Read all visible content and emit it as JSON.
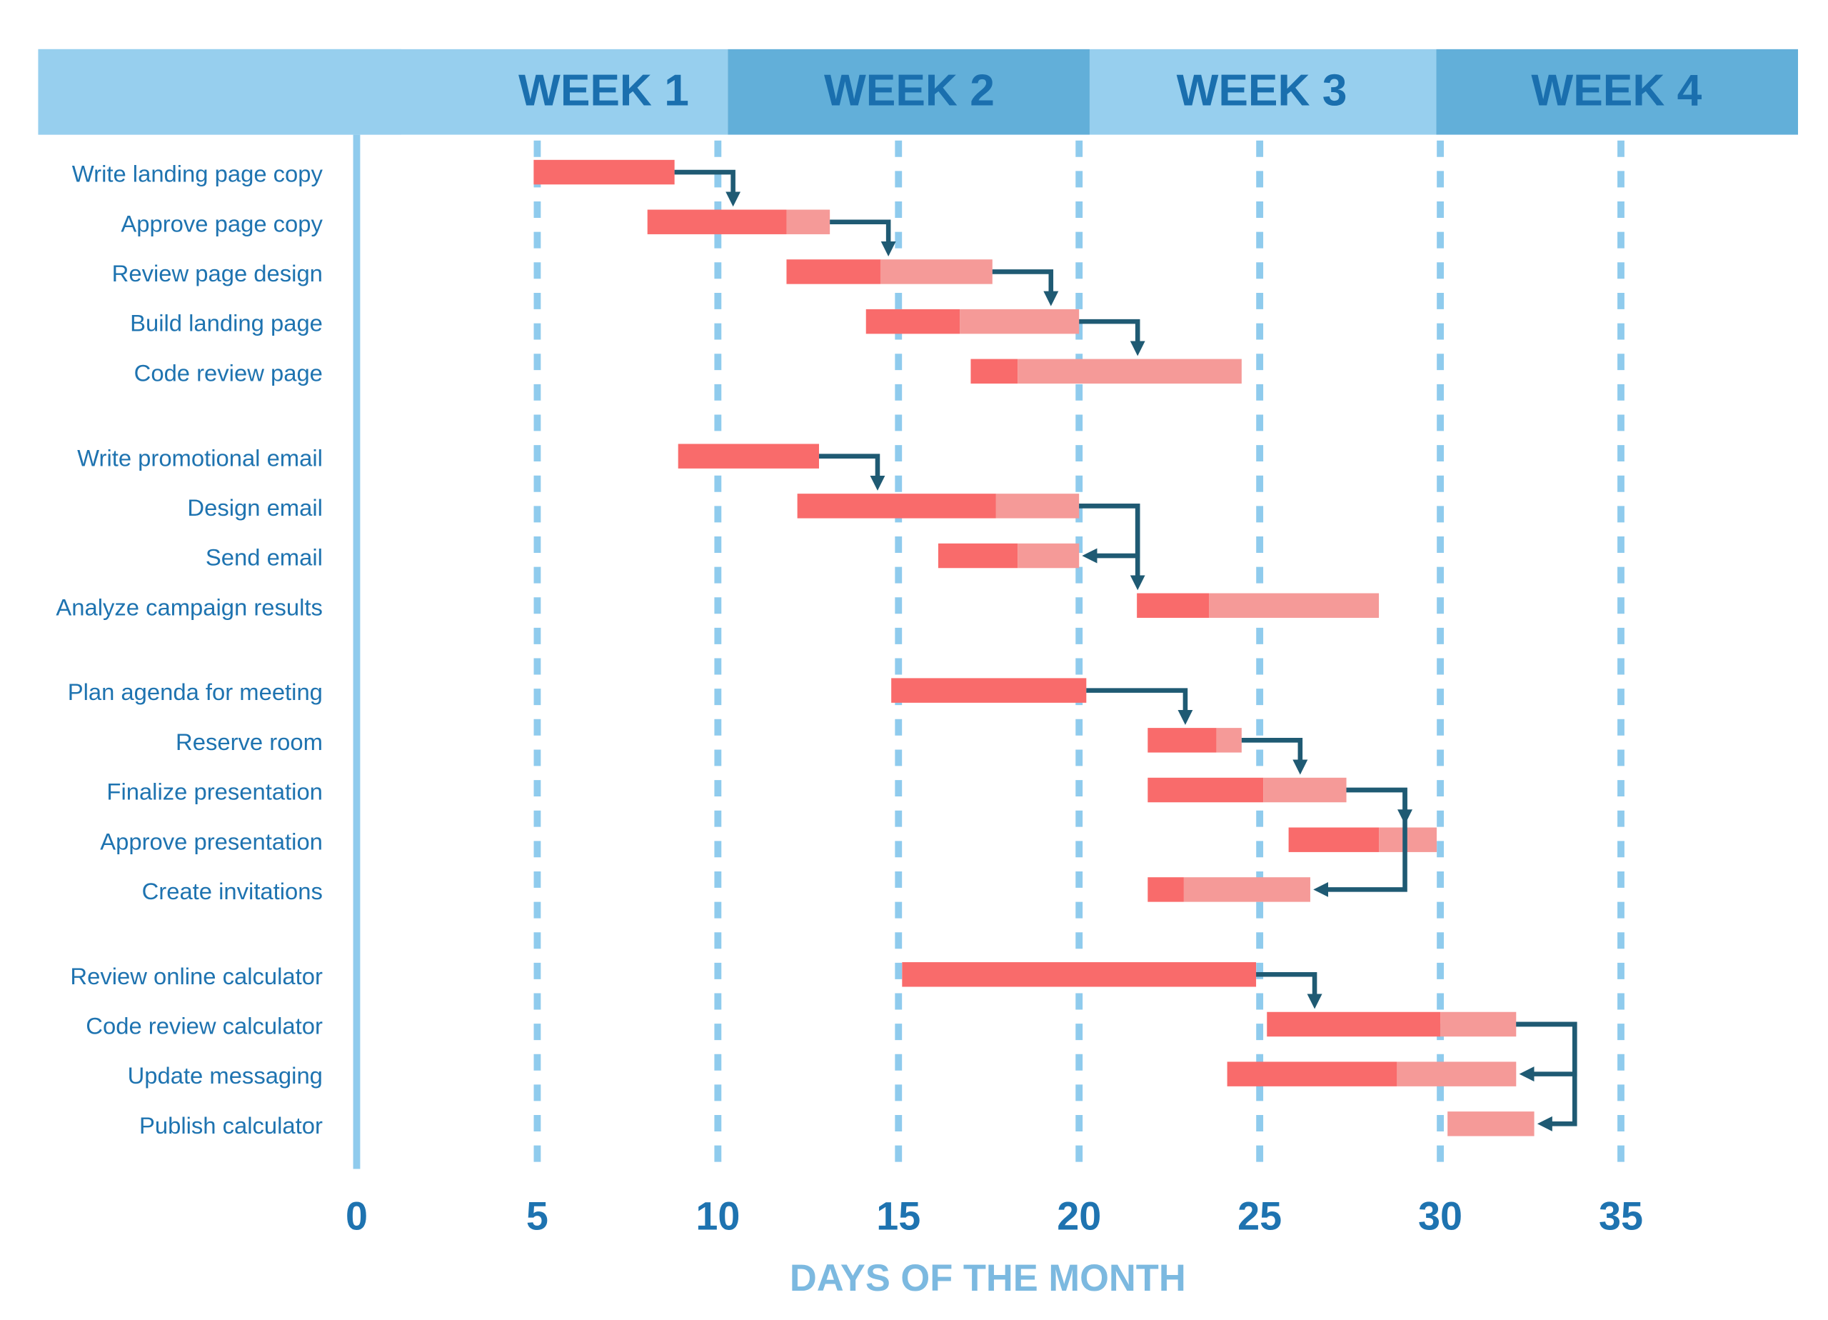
{
  "chart_data": {
    "type": "gantt",
    "weeks": [
      "WEEK 1",
      "WEEK 2",
      "WEEK 3",
      "WEEK 4"
    ],
    "xlabel": "DAYS OF THE MONTH",
    "xlim": [
      0,
      40
    ],
    "xticks": [
      0,
      5,
      10,
      15,
      20,
      25,
      30,
      35
    ],
    "grid": true,
    "colors": {
      "done": "#f96b6b",
      "remaining": "#f59a98"
    },
    "groups": [
      {
        "tasks": [
          {
            "name": "Write landing page copy",
            "start": 4.9,
            "done": 8.8,
            "end": 8.8
          },
          {
            "name": "Approve page copy",
            "start": 8.05,
            "done": 11.9,
            "end": 13.1
          },
          {
            "name": "Review page design",
            "start": 11.9,
            "done": 14.5,
            "end": 17.6
          },
          {
            "name": "Build landing page",
            "start": 14.1,
            "done": 16.7,
            "end": 20
          },
          {
            "name": "Code review page",
            "start": 17,
            "done": 18.3,
            "end": 24.5
          }
        ]
      },
      {
        "tasks": [
          {
            "name": "Write promotional email",
            "start": 8.9,
            "done": 12.8,
            "end": 12.8
          },
          {
            "name": "Design email",
            "start": 12.2,
            "done": 17.7,
            "end": 20
          },
          {
            "name": "Send email",
            "start": 16.1,
            "done": 18.3,
            "end": 20
          },
          {
            "name": "Analyze campaign results",
            "start": 21.6,
            "done": 23.6,
            "end": 28.3
          }
        ]
      },
      {
        "tasks": [
          {
            "name": "Plan agenda for meeting",
            "start": 14.8,
            "done": 20.2,
            "end": 20.2
          },
          {
            "name": "Reserve room",
            "start": 21.9,
            "done": 23.8,
            "end": 24.5
          },
          {
            "name": "Finalize presentation",
            "start": 21.9,
            "done": 25.1,
            "end": 27.4
          },
          {
            "name": "Approve presentation",
            "start": 25.8,
            "done": 28.3,
            "end": 29.9
          },
          {
            "name": "Create invitations",
            "start": 21.9,
            "done": 22.9,
            "end": 26.4
          }
        ]
      },
      {
        "tasks": [
          {
            "name": "Review online calculator",
            "start": 15.1,
            "done": 24.9,
            "end": 24.9
          },
          {
            "name": "Code review calculator",
            "start": 25.2,
            "done": 30,
            "end": 32.1
          },
          {
            "name": "Update messaging",
            "start": 24.1,
            "done": 28.8,
            "end": 32.1
          },
          {
            "name": "Publish calculator",
            "start": 30.2,
            "done": 30.2,
            "end": 32.6
          }
        ]
      }
    ]
  }
}
